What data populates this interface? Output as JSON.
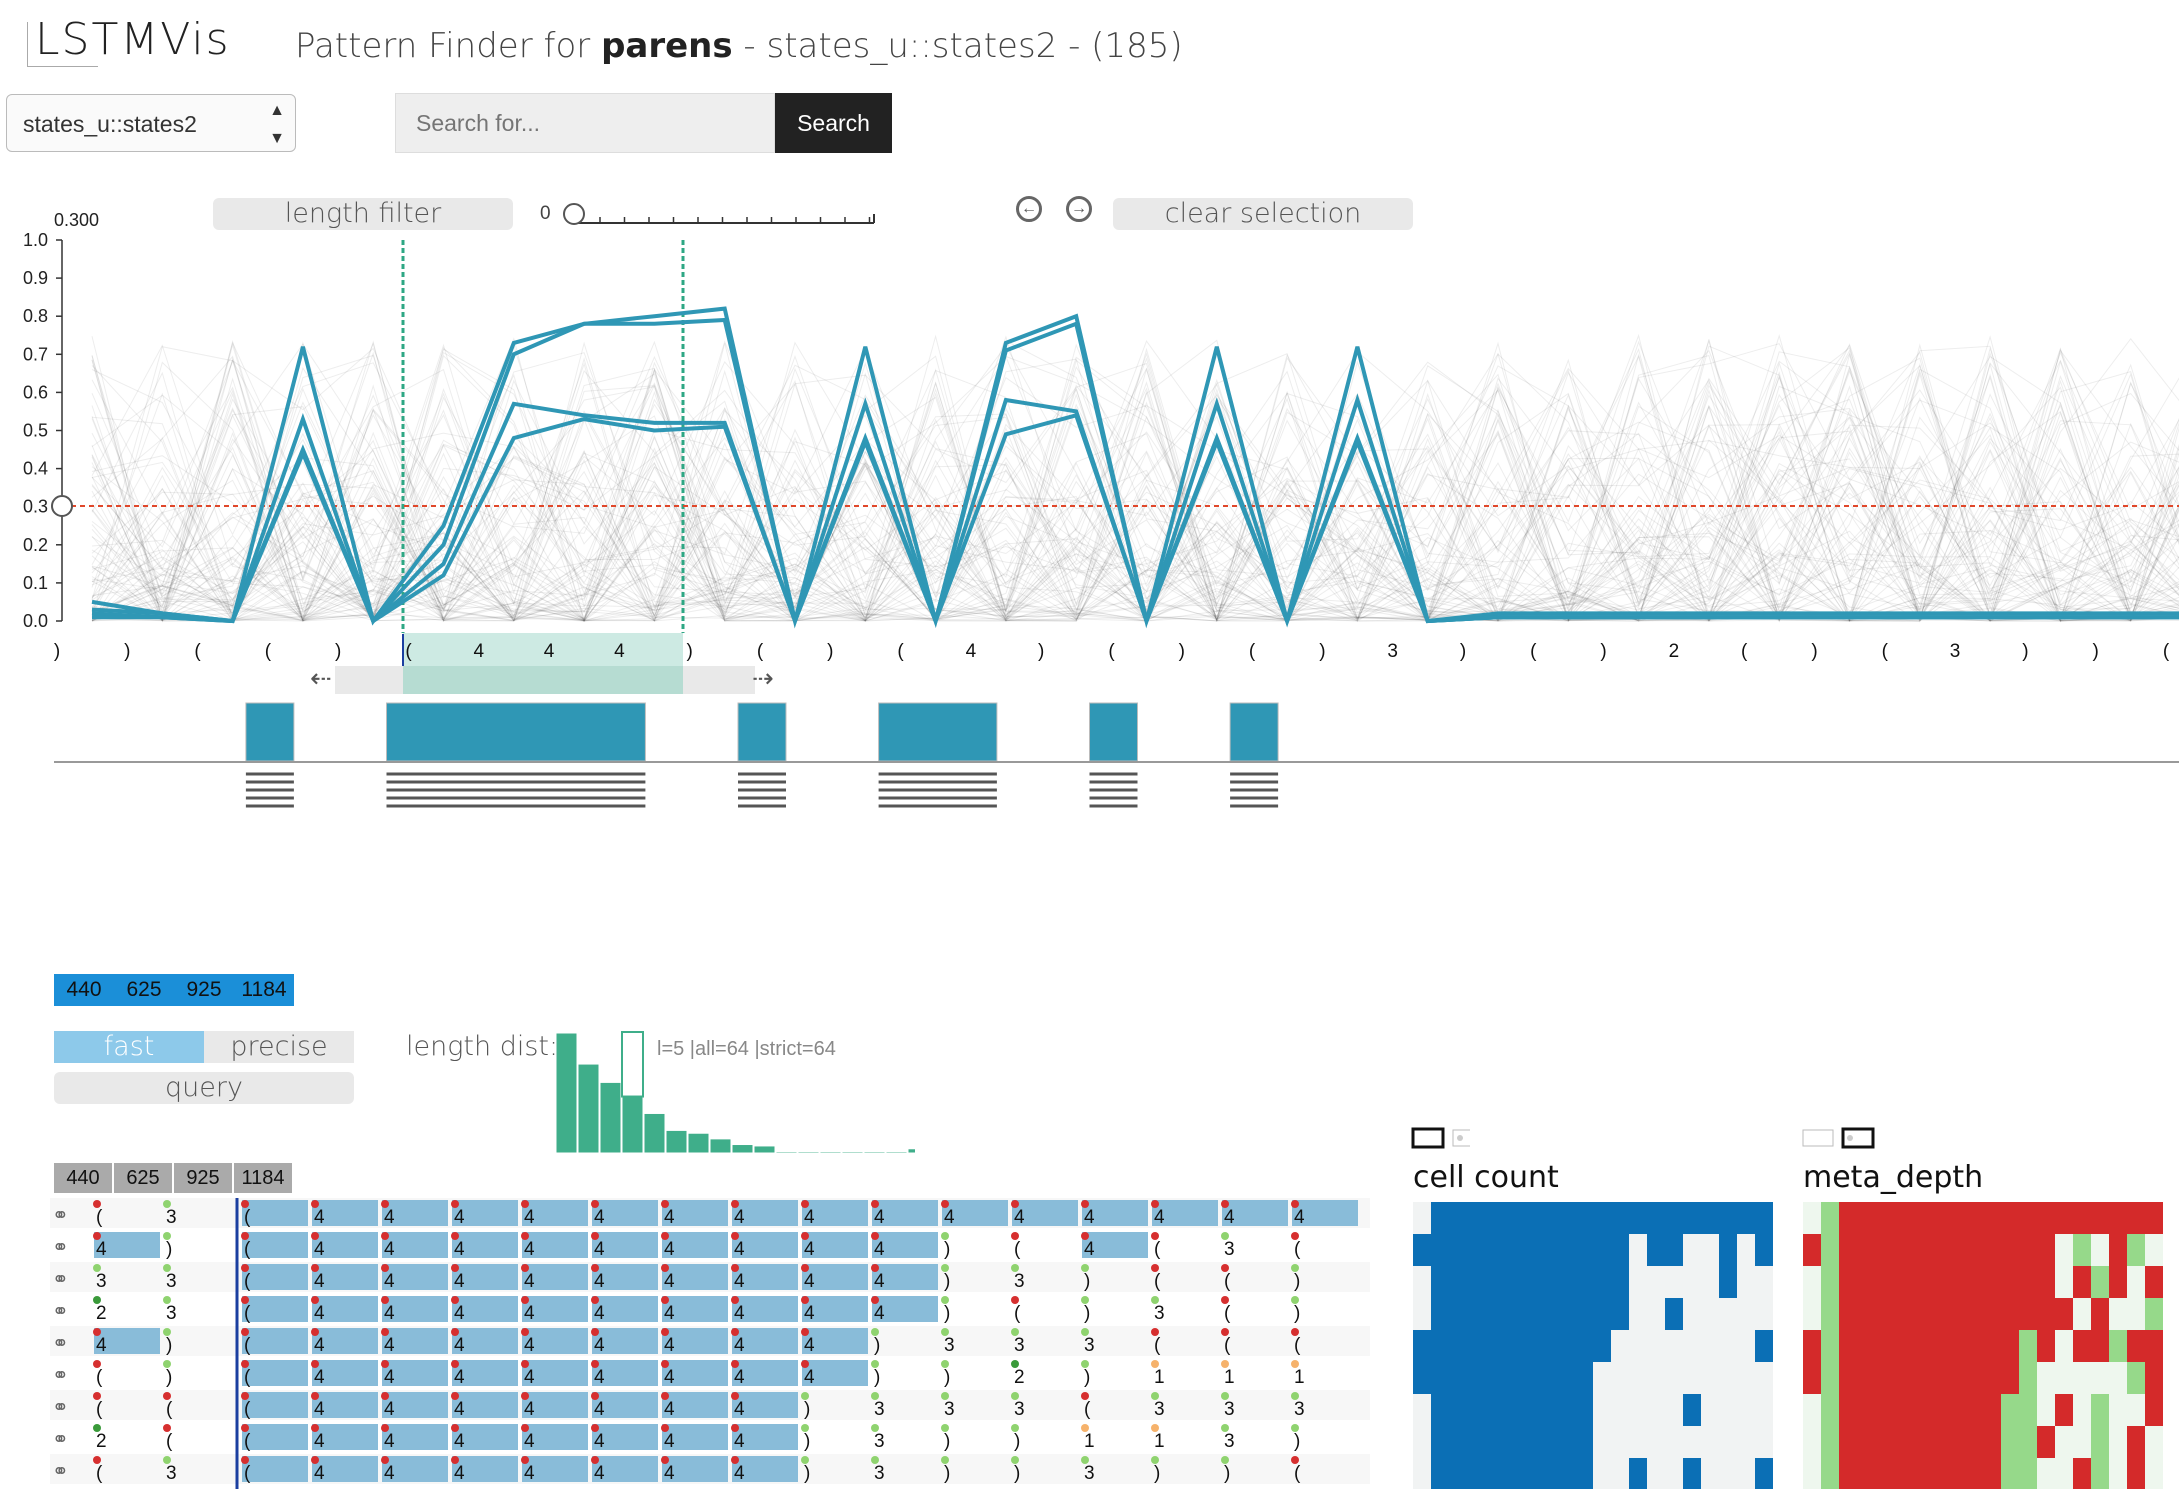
{
  "header": {
    "logo": "LSTMVis",
    "title_prefix": "Pattern Finder for ",
    "title_bold": "parens",
    "title_suffix": " - states_u::states2 - (185)"
  },
  "state_select": {
    "value": "states_u::states2"
  },
  "search": {
    "placeholder": "Search for...",
    "button": "Search"
  },
  "controls": {
    "length_filter": "length filter",
    "clear_selection": "clear selection",
    "slider_value": "0",
    "threshold_label": "0.300"
  },
  "y_axis_ticks": [
    "1.0",
    "0.9",
    "0.8",
    "0.7",
    "0.6",
    "0.5",
    "0.4",
    "0.3",
    "0.2",
    "0.1",
    "0.0"
  ],
  "tokens": [
    ")",
    ")",
    "(",
    "(",
    ")",
    "(",
    "4",
    "4",
    "4",
    ")",
    "(",
    ")",
    "(",
    "4",
    ")",
    "(",
    ")",
    "(",
    ")",
    "3",
    ")",
    "(",
    ")",
    "2",
    "(",
    ")",
    "(",
    "3",
    ")",
    ")",
    "("
  ],
  "chart_data": {
    "type": "line",
    "ylim": [
      0,
      1
    ],
    "threshold": 0.3,
    "series": [
      {
        "values": [
          0.05,
          0.02,
          0.0,
          0.72,
          0.0,
          0.25,
          0.73,
          0.78,
          0.8,
          0.82,
          0.0,
          0.72,
          0.0,
          0.73,
          0.8,
          0.0,
          0.72,
          0.0,
          0.72,
          0.0,
          0.02,
          0.02,
          0.02,
          0.02,
          0.02,
          0.02,
          0.02,
          0.02,
          0.02,
          0.02,
          0.02
        ]
      },
      {
        "values": [
          0.03,
          0.02,
          0.0,
          0.53,
          0.0,
          0.2,
          0.7,
          0.78,
          0.78,
          0.79,
          0.0,
          0.57,
          0.0,
          0.71,
          0.78,
          0.0,
          0.57,
          0.0,
          0.58,
          0.0,
          0.01,
          0.01,
          0.01,
          0.01,
          0.01,
          0.01,
          0.01,
          0.01,
          0.01,
          0.01,
          0.01
        ]
      },
      {
        "values": [
          0.02,
          0.01,
          0.0,
          0.45,
          0.0,
          0.15,
          0.57,
          0.54,
          0.52,
          0.52,
          0.0,
          0.48,
          0.0,
          0.58,
          0.55,
          0.0,
          0.48,
          0.0,
          0.48,
          0.0,
          0.01,
          0.01,
          0.01,
          0.01,
          0.01,
          0.01,
          0.01,
          0.01,
          0.01,
          0.01,
          0.01
        ]
      },
      {
        "values": [
          0.01,
          0.01,
          0.0,
          0.44,
          0.0,
          0.12,
          0.48,
          0.53,
          0.5,
          0.51,
          0.0,
          0.47,
          0.0,
          0.49,
          0.54,
          0.0,
          0.47,
          0.0,
          0.47,
          0.0,
          0.01,
          0.01,
          0.01,
          0.01,
          0.01,
          0.01,
          0.01,
          0.01,
          0.01,
          0.01,
          0.01
        ]
      }
    ]
  },
  "pattern_blocks": [
    3,
    5,
    6,
    7,
    8,
    10,
    12,
    13,
    15,
    17
  ],
  "pattern_tags": [
    "440",
    "625",
    "925",
    "1184"
  ],
  "mode": {
    "fast": "fast",
    "precise": "precise",
    "query": "query"
  },
  "length_dist": {
    "label": "length dist:",
    "summary": "l=5 |all=64 |strict=64",
    "values": [
      85,
      63,
      50,
      40,
      28,
      16,
      14,
      10,
      6,
      5,
      1,
      1,
      1,
      1,
      1,
      1,
      3
    ]
  },
  "matches": [
    [
      "(",
      "3",
      "(",
      "4",
      "4",
      "4",
      "4",
      "4",
      "4",
      "4",
      "4",
      "4",
      "4",
      "4",
      "4",
      "4",
      "4",
      "4"
    ],
    [
      "4",
      ")",
      "(",
      "4",
      "4",
      "4",
      "4",
      "4",
      "4",
      "4",
      "4",
      "4",
      ")",
      "(",
      "4",
      "(",
      "3",
      "("
    ],
    [
      "3",
      "3",
      "(",
      "4",
      "4",
      "4",
      "4",
      "4",
      "4",
      "4",
      "4",
      "4",
      ")",
      "3",
      ")",
      "(",
      "(",
      ")"
    ],
    [
      "2",
      "3",
      "(",
      "4",
      "4",
      "4",
      "4",
      "4",
      "4",
      "4",
      "4",
      "4",
      ")",
      "(",
      ")",
      "3",
      "(",
      ")"
    ],
    [
      "4",
      ")",
      "(",
      "4",
      "4",
      "4",
      "4",
      "4",
      "4",
      "4",
      "4",
      ")",
      "3",
      "3",
      "3",
      "(",
      "(",
      "("
    ],
    [
      "(",
      ")",
      "(",
      "4",
      "4",
      "4",
      "4",
      "4",
      "4",
      "4",
      "4",
      ")",
      ")",
      "2",
      ")",
      "1",
      "1",
      "1"
    ],
    [
      "(",
      "(",
      "(",
      "4",
      "4",
      "4",
      "4",
      "4",
      "4",
      "4",
      ")",
      "3",
      "3",
      "3",
      "(",
      "3",
      "3",
      "3"
    ],
    [
      "2",
      "(",
      "(",
      "4",
      "4",
      "4",
      "4",
      "4",
      "4",
      "4",
      ")",
      "3",
      ")",
      ")",
      "1",
      "1",
      "3",
      ")"
    ],
    [
      "(",
      "3",
      "(",
      "4",
      "4",
      "4",
      "4",
      "4",
      "4",
      "4",
      ")",
      "3",
      ")",
      ")",
      "3",
      ")",
      ")",
      "("
    ]
  ],
  "panels": {
    "cell_count": "cell count",
    "meta_depth": "meta_depth"
  }
}
